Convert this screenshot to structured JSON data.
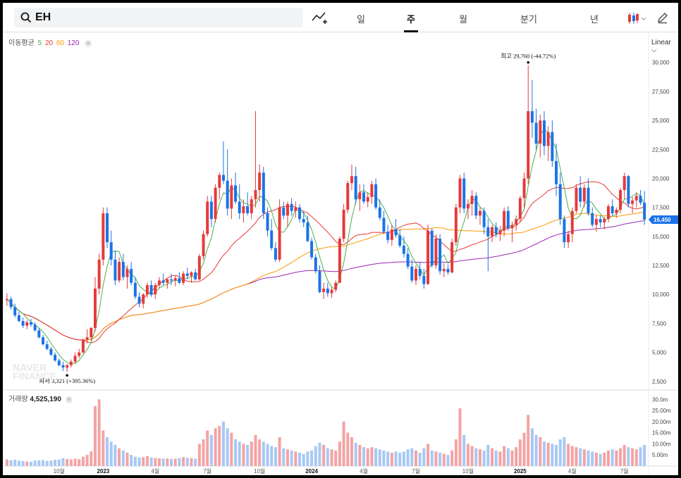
{
  "search": {
    "value": "EH"
  },
  "tabs": [
    {
      "label": "일",
      "active": false
    },
    {
      "label": "주",
      "active": true
    },
    {
      "label": "월",
      "active": false
    },
    {
      "label": "분기",
      "active": false
    },
    {
      "label": "년",
      "active": false
    }
  ],
  "legend": {
    "ma_label": "이동평균",
    "ma_periods": [
      {
        "label": "5",
        "color": "#4caf50"
      },
      {
        "label": "20",
        "color": "#e53935"
      },
      {
        "label": "60",
        "color": "#ff9800"
      },
      {
        "label": "120",
        "color": "#9c27b0"
      }
    ],
    "volume_label": "거래량",
    "volume_value": "4,525,190"
  },
  "scale_label": "Linear",
  "watermark": [
    "NAVER",
    "FINANCE"
  ],
  "colors": {
    "up": "#e63a3a",
    "down": "#1a73e8",
    "up_volume": "#f4a3a3",
    "down_volume": "#a8c8f5",
    "price_tag": "#1a73e8"
  },
  "chart_data": {
    "type": "candlestick",
    "period": "weekly",
    "price_axis": {
      "ticks": [
        "2,500",
        "5,000",
        "7,500",
        "10,000",
        "12,500",
        "15,000",
        "17,500",
        "20,000",
        "22,500",
        "25,000",
        "27,500",
        "30,000"
      ],
      "ylim": [
        2000,
        31500
      ]
    },
    "volume_axis": {
      "ticks": [
        "5.00m",
        "10.00m",
        "15.00m",
        "20.00m",
        "25.00m",
        "30.0m"
      ],
      "ylim": [
        0,
        32000000
      ]
    },
    "x_axis_labels": [
      "10월",
      "2023",
      "4월",
      "7월",
      "10월",
      "2024",
      "4월",
      "7월",
      "10월",
      "2025",
      "4월",
      "7월"
    ],
    "current_price": "16,450",
    "annotations": {
      "high": {
        "label": "최고",
        "value": "29,760",
        "change": "(-44.72%)"
      },
      "low": {
        "label": "최저",
        "value": "3,321",
        "change": "(+395.36%)"
      }
    },
    "candles": [
      [
        9500,
        10100,
        9000,
        9600,
        3000000
      ],
      [
        9600,
        9800,
        8700,
        8900,
        2600000
      ],
      [
        8900,
        9200,
        8000,
        8200,
        2900000
      ],
      [
        8200,
        8500,
        7600,
        7700,
        2400000
      ],
      [
        7700,
        8000,
        7100,
        7300,
        2200000
      ],
      [
        7300,
        7800,
        7000,
        7600,
        2000000
      ],
      [
        7600,
        7900,
        7200,
        7400,
        1900000
      ],
      [
        7400,
        7600,
        6800,
        6900,
        2500000
      ],
      [
        6900,
        7100,
        6200,
        6300,
        2600000
      ],
      [
        6300,
        6500,
        5600,
        5700,
        2700000
      ],
      [
        5700,
        6000,
        5200,
        5300,
        2300000
      ],
      [
        5300,
        5500,
        4700,
        4800,
        2400000
      ],
      [
        4800,
        5000,
        4200,
        4300,
        2800000
      ],
      [
        4300,
        4500,
        3800,
        3900,
        2900000
      ],
      [
        3900,
        4200,
        3400,
        3700,
        3600000
      ],
      [
        3700,
        4000,
        3321,
        3900,
        3200000
      ],
      [
        3900,
        4400,
        3700,
        4200,
        3000000
      ],
      [
        4200,
        5000,
        4000,
        4700,
        3300000
      ],
      [
        4700,
        5300,
        4500,
        5000,
        3100000
      ],
      [
        5000,
        6200,
        4900,
        6100,
        4200000
      ],
      [
        6100,
        7000,
        5800,
        6300,
        5000000
      ],
      [
        6300,
        7200,
        6000,
        7100,
        6600000
      ],
      [
        7100,
        11500,
        6800,
        10500,
        27000000
      ],
      [
        10500,
        13500,
        10000,
        13000,
        30000000
      ],
      [
        13000,
        17500,
        12500,
        17000,
        16000000
      ],
      [
        17000,
        17500,
        14000,
        14500,
        13000000
      ],
      [
        14500,
        15500,
        12500,
        13000,
        11000000
      ],
      [
        13000,
        13800,
        10800,
        11200,
        9500000
      ],
      [
        11200,
        13200,
        11000,
        12800,
        8000000
      ],
      [
        12800,
        13500,
        11200,
        11500,
        7000000
      ],
      [
        11500,
        12500,
        10500,
        12200,
        6000000
      ],
      [
        12200,
        12800,
        10800,
        11000,
        5000000
      ],
      [
        11000,
        11500,
        9600,
        9800,
        4200000
      ],
      [
        9800,
        10200,
        8900,
        9200,
        3800000
      ],
      [
        9200,
        10100,
        8800,
        10000,
        4000000
      ],
      [
        10000,
        11000,
        9700,
        10800,
        4500000
      ],
      [
        10800,
        11200,
        9800,
        10000,
        3900000
      ],
      [
        10000,
        11000,
        9600,
        10800,
        3600000
      ],
      [
        10800,
        11500,
        10500,
        11200,
        3500000
      ],
      [
        11200,
        11800,
        10800,
        11000,
        3300000
      ],
      [
        11000,
        11400,
        10500,
        11300,
        3400000
      ],
      [
        11300,
        11800,
        10800,
        11200,
        3200000
      ],
      [
        11200,
        11600,
        10700,
        11400,
        3300000
      ],
      [
        11400,
        11900,
        10900,
        11000,
        3500000
      ],
      [
        11000,
        12000,
        10800,
        11800,
        4000000
      ],
      [
        11800,
        12300,
        11300,
        11600,
        3700000
      ],
      [
        11600,
        12000,
        11000,
        11900,
        3600000
      ],
      [
        11900,
        12200,
        11200,
        11300,
        3300000
      ],
      [
        11300,
        13500,
        11200,
        13300,
        10000000
      ],
      [
        13300,
        15500,
        13000,
        15200,
        12000000
      ],
      [
        15200,
        18500,
        15000,
        18000,
        16000000
      ],
      [
        18000,
        18500,
        15800,
        16500,
        14000000
      ],
      [
        16500,
        19500,
        16200,
        19200,
        17000000
      ],
      [
        19200,
        20500,
        18200,
        20300,
        18000000
      ],
      [
        20300,
        23200,
        19500,
        19800,
        20000000
      ],
      [
        19800,
        22500,
        16800,
        17400,
        17000000
      ],
      [
        17400,
        20000,
        16500,
        19400,
        15000000
      ],
      [
        19400,
        20500,
        17800,
        18000,
        12000000
      ],
      [
        18000,
        19500,
        16500,
        17000,
        11000000
      ],
      [
        17000,
        18200,
        16200,
        17600,
        10000000
      ],
      [
        17600,
        18800,
        16800,
        17000,
        9500000
      ],
      [
        17000,
        18500,
        16500,
        18200,
        11000000
      ],
      [
        18200,
        25800,
        17500,
        19000,
        14000000
      ],
      [
        19000,
        21200,
        18000,
        20500,
        12000000
      ],
      [
        20500,
        21000,
        16500,
        17000,
        11000000
      ],
      [
        17000,
        17500,
        15000,
        15500,
        10000000
      ],
      [
        15500,
        16500,
        13800,
        14000,
        9000000
      ],
      [
        14000,
        14500,
        12800,
        13000,
        8500000
      ],
      [
        13000,
        18200,
        12800,
        17500,
        13000000
      ],
      [
        17500,
        18000,
        16500,
        16800,
        8000000
      ],
      [
        16800,
        18000,
        15800,
        17800,
        7500000
      ],
      [
        17800,
        18300,
        16800,
        17200,
        7000000
      ],
      [
        17200,
        18000,
        16600,
        17500,
        6500000
      ],
      [
        17500,
        17800,
        16200,
        16500,
        6000000
      ],
      [
        16500,
        17200,
        15800,
        16200,
        5500000
      ],
      [
        16200,
        16800,
        14500,
        14600,
        6500000
      ],
      [
        14600,
        14900,
        13000,
        13200,
        7000000
      ],
      [
        13200,
        13500,
        11800,
        12000,
        9000000
      ],
      [
        12000,
        12500,
        10100,
        10200,
        10500000
      ],
      [
        10200,
        11000,
        9600,
        10500,
        9500000
      ],
      [
        10500,
        11000,
        9800,
        10100,
        8000000
      ],
      [
        10100,
        10600,
        9700,
        10400,
        7500000
      ],
      [
        10400,
        11200,
        10200,
        11000,
        7000000
      ],
      [
        11000,
        15000,
        11000,
        14800,
        11000000
      ],
      [
        14800,
        17800,
        14500,
        17300,
        20000000
      ],
      [
        17300,
        19800,
        17000,
        19600,
        15000000
      ],
      [
        19600,
        21200,
        19000,
        20200,
        13000000
      ],
      [
        20200,
        21000,
        17800,
        18200,
        10500000
      ],
      [
        18200,
        19500,
        17200,
        18800,
        9500000
      ],
      [
        18800,
        19500,
        17800,
        18000,
        8500000
      ],
      [
        18000,
        18800,
        17500,
        18400,
        8000000
      ],
      [
        18400,
        19800,
        17800,
        19500,
        8500000
      ],
      [
        19500,
        20000,
        17300,
        17500,
        8000000
      ],
      [
        17500,
        18200,
        16400,
        16600,
        7500000
      ],
      [
        16600,
        17200,
        15200,
        15400,
        7000000
      ],
      [
        15400,
        16000,
        14400,
        14700,
        6500000
      ],
      [
        14700,
        16000,
        14200,
        15600,
        6000000
      ],
      [
        15600,
        16500,
        14900,
        15100,
        6500000
      ],
      [
        15100,
        15600,
        14000,
        14200,
        6000000
      ],
      [
        14200,
        15000,
        13200,
        13500,
        6500000
      ],
      [
        13500,
        14000,
        12200,
        12400,
        7500000
      ],
      [
        12400,
        13000,
        11000,
        11200,
        8000000
      ],
      [
        11200,
        12500,
        10800,
        12200,
        7000000
      ],
      [
        12200,
        12800,
        11300,
        11600,
        6000000
      ],
      [
        11600,
        12200,
        10500,
        10900,
        8000000
      ],
      [
        10900,
        16000,
        10800,
        15500,
        10000000
      ],
      [
        15500,
        15700,
        12300,
        12500,
        7000000
      ],
      [
        12500,
        15200,
        12200,
        14800,
        6500000
      ],
      [
        14800,
        15200,
        11700,
        12000,
        6000000
      ],
      [
        12000,
        12700,
        11500,
        12200,
        5500000
      ],
      [
        12200,
        12600,
        11700,
        11900,
        5000000
      ],
      [
        11900,
        14800,
        11800,
        14500,
        7000000
      ],
      [
        14500,
        17800,
        14200,
        17500,
        12000000
      ],
      [
        17500,
        20300,
        17000,
        20000,
        26000000
      ],
      [
        20000,
        20500,
        17000,
        17400,
        14000000
      ],
      [
        17400,
        18200,
        16500,
        17800,
        10000000
      ],
      [
        17800,
        19000,
        16800,
        18500,
        9000000
      ],
      [
        18500,
        18800,
        16500,
        16800,
        8000000
      ],
      [
        16800,
        17500,
        16000,
        17200,
        7500000
      ],
      [
        17200,
        17500,
        15200,
        15800,
        7000000
      ],
      [
        15800,
        16500,
        12000,
        15000,
        9500000
      ],
      [
        15000,
        16000,
        14500,
        15800,
        8000000
      ],
      [
        15800,
        16200,
        14900,
        15200,
        7000000
      ],
      [
        15200,
        15900,
        14600,
        15500,
        6500000
      ],
      [
        15500,
        17500,
        15000,
        17200,
        9000000
      ],
      [
        17200,
        17600,
        15500,
        15700,
        8000000
      ],
      [
        15700,
        16300,
        14500,
        16000,
        7000000
      ],
      [
        16000,
        16800,
        15500,
        16500,
        8500000
      ],
      [
        16500,
        18500,
        16200,
        18300,
        12000000
      ],
      [
        18300,
        20500,
        17500,
        20000,
        15000000
      ],
      [
        20000,
        29760,
        19500,
        25800,
        23000000
      ],
      [
        25800,
        28500,
        23500,
        24800,
        17000000
      ],
      [
        24800,
        26000,
        22500,
        23000,
        14000000
      ],
      [
        23000,
        25500,
        21800,
        25000,
        13000000
      ],
      [
        25000,
        25800,
        22000,
        22800,
        11000000
      ],
      [
        22800,
        24500,
        21500,
        24000,
        10500000
      ],
      [
        24000,
        25000,
        21000,
        21500,
        10000000
      ],
      [
        21500,
        23000,
        18500,
        19500,
        9500000
      ],
      [
        19500,
        20500,
        16000,
        16500,
        12000000
      ],
      [
        16500,
        16800,
        14000,
        14500,
        13000000
      ],
      [
        14500,
        15500,
        14000,
        15200,
        10000000
      ],
      [
        15200,
        17500,
        14500,
        17200,
        9000000
      ],
      [
        17200,
        19500,
        17000,
        19200,
        8500000
      ],
      [
        19200,
        20200,
        17500,
        18000,
        8000000
      ],
      [
        18000,
        19500,
        17500,
        19200,
        7500000
      ],
      [
        19200,
        20000,
        16800,
        17000,
        7000000
      ],
      [
        17000,
        17500,
        15800,
        16000,
        6500000
      ],
      [
        16000,
        16800,
        15400,
        16500,
        6000000
      ],
      [
        16500,
        16800,
        15800,
        16200,
        5500000
      ],
      [
        16200,
        16700,
        15600,
        16500,
        6000000
      ],
      [
        16500,
        17800,
        16200,
        17600,
        7000000
      ],
      [
        17600,
        18200,
        16800,
        17000,
        7500000
      ],
      [
        17000,
        17500,
        16600,
        17300,
        7000000
      ],
      [
        17300,
        19200,
        17000,
        19000,
        8000000
      ],
      [
        19000,
        20500,
        18200,
        20200,
        9500000
      ],
      [
        20200,
        20300,
        17500,
        17800,
        8500000
      ],
      [
        17800,
        18400,
        17000,
        18100,
        8000000
      ],
      [
        18100,
        18800,
        17500,
        18500,
        7500000
      ],
      [
        18500,
        19000,
        17700,
        17900,
        8500000
      ],
      [
        17900,
        18900,
        16000,
        16450,
        9500000
      ]
    ]
  }
}
